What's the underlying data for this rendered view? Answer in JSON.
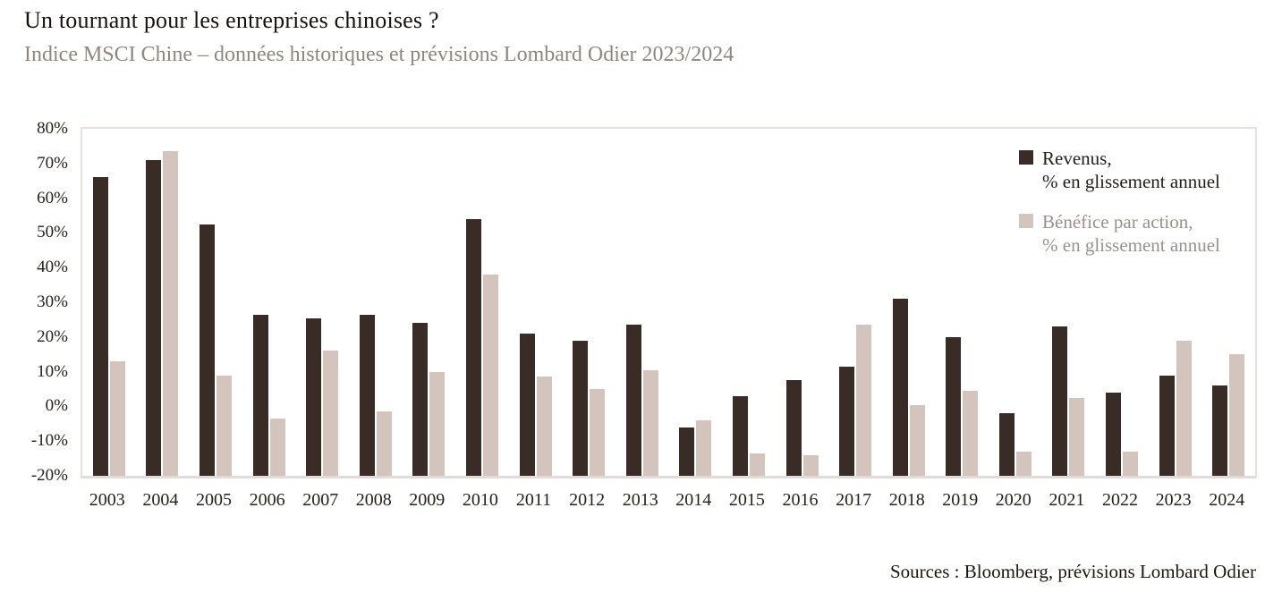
{
  "header": {
    "title": "Un tournant pour les entreprises chinoises ?",
    "subtitle": "Indice MSCI Chine – données historiques et prévisions Lombard Odier 2023/2024"
  },
  "legend": {
    "items": [
      {
        "label_line1": "Revenus,",
        "label_line2": "% en glissement annuel",
        "color": "#392c27",
        "text_color": "#241c18"
      },
      {
        "label_line1": "Bénéfice par action,",
        "label_line2": "% en glissement annuel",
        "color": "#d3c5bd",
        "text_color": "#9a918a"
      }
    ]
  },
  "footer": {
    "sources": "Sources : Bloomberg, prévisions Lombard Odier"
  },
  "colors": {
    "revenus_bar": "#392c27",
    "benefice_bar": "#d3c5bd",
    "plot_frame": "#eadfda",
    "axis_text": "#28201c",
    "subtitle_text": "#8f867e"
  },
  "chart_data": {
    "type": "bar",
    "title": "Un tournant pour les entreprises chinoises ?",
    "subtitle": "Indice MSCI Chine – données historiques et prévisions Lombard Odier 2023/2024",
    "categories": [
      "2003",
      "2004",
      "2005",
      "2006",
      "2007",
      "2008",
      "2009",
      "2010",
      "2011",
      "2012",
      "2013",
      "2014",
      "2015",
      "2016",
      "2017",
      "2018",
      "2019",
      "2020",
      "2021",
      "2022",
      "2023",
      "2024"
    ],
    "series": [
      {
        "name": "Revenus, % en glissement annuel",
        "color": "#392c27",
        "values": [
          66,
          71,
          52.5,
          26.5,
          25.5,
          26.5,
          24,
          54,
          21,
          19,
          23.5,
          -6,
          3,
          7.5,
          11.5,
          31,
          20,
          -2,
          23,
          4,
          9,
          6
        ]
      },
      {
        "name": "Bénéfice par action, % en glissement annuel",
        "color": "#d3c5bd",
        "values": [
          13,
          73.5,
          9,
          -3.5,
          16,
          -1.5,
          10,
          38,
          8.5,
          5,
          10.5,
          -4,
          -13.5,
          -14,
          23.5,
          0.5,
          4.5,
          -13,
          2.5,
          -13,
          19,
          15
        ]
      }
    ],
    "xlabel": "",
    "ylabel": "",
    "ylim": [
      -20,
      80
    ],
    "y_ticks": [
      "80%",
      "70%",
      "60%",
      "50%",
      "40%",
      "30%",
      "20%",
      "10%",
      "0%",
      "-10%",
      "-20%"
    ],
    "grid": false,
    "legend_position": "top-right",
    "bar_anchor": "ylim-bottom",
    "unit": "%"
  }
}
